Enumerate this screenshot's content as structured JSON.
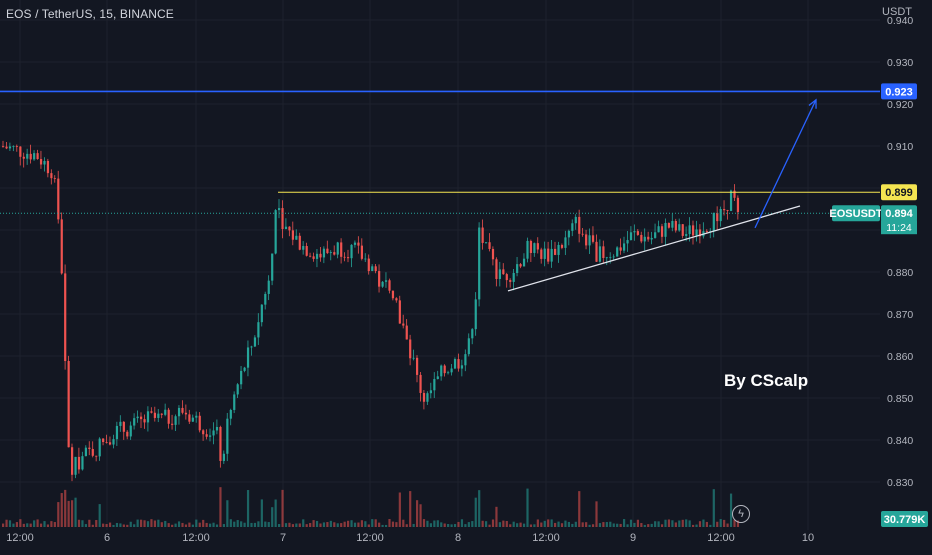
{
  "header": {
    "symbol_title": "EOS / TetherUS, 15, BINANCE",
    "currency": "USDT"
  },
  "watermark": "By CScalp",
  "icons": {
    "live": "lightning-icon"
  },
  "colors": {
    "background": "#131722",
    "up": "#26a69a",
    "down": "#ef5350",
    "target_line": "#2962ff",
    "resistance_line": "#f5e551",
    "trendline": "#e0e3eb",
    "arrow": "#2962ff"
  },
  "price_labels": {
    "target": "0.923",
    "resistance": "0.899",
    "symbol_tag": "EOSUSDT",
    "last_price": "0.894",
    "countdown": "11:24",
    "volume": "30.779K"
  },
  "chart_data": {
    "type": "candlestick",
    "interval": "15",
    "y_axis": {
      "ticks": [
        "0.830",
        "0.840",
        "0.850",
        "0.860",
        "0.870",
        "0.880",
        "0.890",
        "0.900",
        "0.910",
        "0.920",
        "0.930",
        "0.940"
      ],
      "ylim": [
        0.825,
        0.942
      ],
      "position": "right"
    },
    "x_axis": {
      "ticks": [
        "12:00",
        "6",
        "12:00",
        "7",
        "12:00",
        "8",
        "12:00",
        "9",
        "12:00",
        "10"
      ]
    },
    "horizontal_levels": [
      {
        "role": "target",
        "price": 0.923
      },
      {
        "role": "resistance",
        "price": 0.899
      },
      {
        "role": "last_price",
        "price": 0.894
      }
    ],
    "trendline": {
      "from": {
        "x_index": 0.48,
        "price": 0.8755
      },
      "to": {
        "x_index": 0.945,
        "price": 0.8957
      }
    },
    "projection_arrow": {
      "from_price": 0.8905,
      "to_price": 0.921
    },
    "close_path": [
      [
        0.0,
        0.91
      ],
      [
        0.04,
        0.908
      ],
      [
        0.06,
        0.904
      ],
      [
        0.066,
        0.893
      ],
      [
        0.072,
        0.875
      ],
      [
        0.076,
        0.84
      ],
      [
        0.082,
        0.833
      ],
      [
        0.095,
        0.836
      ],
      [
        0.11,
        0.838
      ],
      [
        0.13,
        0.842
      ],
      [
        0.15,
        0.843
      ],
      [
        0.17,
        0.845
      ],
      [
        0.19,
        0.845
      ],
      [
        0.21,
        0.847
      ],
      [
        0.23,
        0.844
      ],
      [
        0.25,
        0.841
      ],
      [
        0.255,
        0.834
      ],
      [
        0.26,
        0.842
      ],
      [
        0.27,
        0.851
      ],
      [
        0.28,
        0.857
      ],
      [
        0.29,
        0.863
      ],
      [
        0.3,
        0.871
      ],
      [
        0.31,
        0.88
      ],
      [
        0.318,
        0.896
      ],
      [
        0.33,
        0.89
      ],
      [
        0.35,
        0.886
      ],
      [
        0.37,
        0.884
      ],
      [
        0.39,
        0.886
      ],
      [
        0.41,
        0.885
      ],
      [
        0.43,
        0.881
      ],
      [
        0.44,
        0.876
      ],
      [
        0.45,
        0.878
      ],
      [
        0.46,
        0.87
      ],
      [
        0.47,
        0.862
      ],
      [
        0.48,
        0.855
      ],
      [
        0.49,
        0.849
      ],
      [
        0.5,
        0.853
      ],
      [
        0.51,
        0.856
      ],
      [
        0.52,
        0.858
      ],
      [
        0.53,
        0.859
      ],
      [
        0.54,
        0.862
      ],
      [
        0.548,
        0.874
      ],
      [
        0.552,
        0.89
      ],
      [
        0.56,
        0.885
      ],
      [
        0.575,
        0.879
      ],
      [
        0.59,
        0.88
      ],
      [
        0.61,
        0.886
      ],
      [
        0.63,
        0.884
      ],
      [
        0.65,
        0.887
      ],
      [
        0.665,
        0.892
      ],
      [
        0.675,
        0.888
      ],
      [
        0.69,
        0.884
      ],
      [
        0.71,
        0.885
      ],
      [
        0.73,
        0.889
      ],
      [
        0.75,
        0.888
      ],
      [
        0.77,
        0.891
      ],
      [
        0.79,
        0.889
      ],
      [
        0.81,
        0.891
      ],
      [
        0.83,
        0.893
      ],
      [
        0.845,
        0.899
      ],
      [
        0.85,
        0.893
      ],
      [
        0.857,
        0.894
      ]
    ],
    "volume_unit": "K"
  }
}
